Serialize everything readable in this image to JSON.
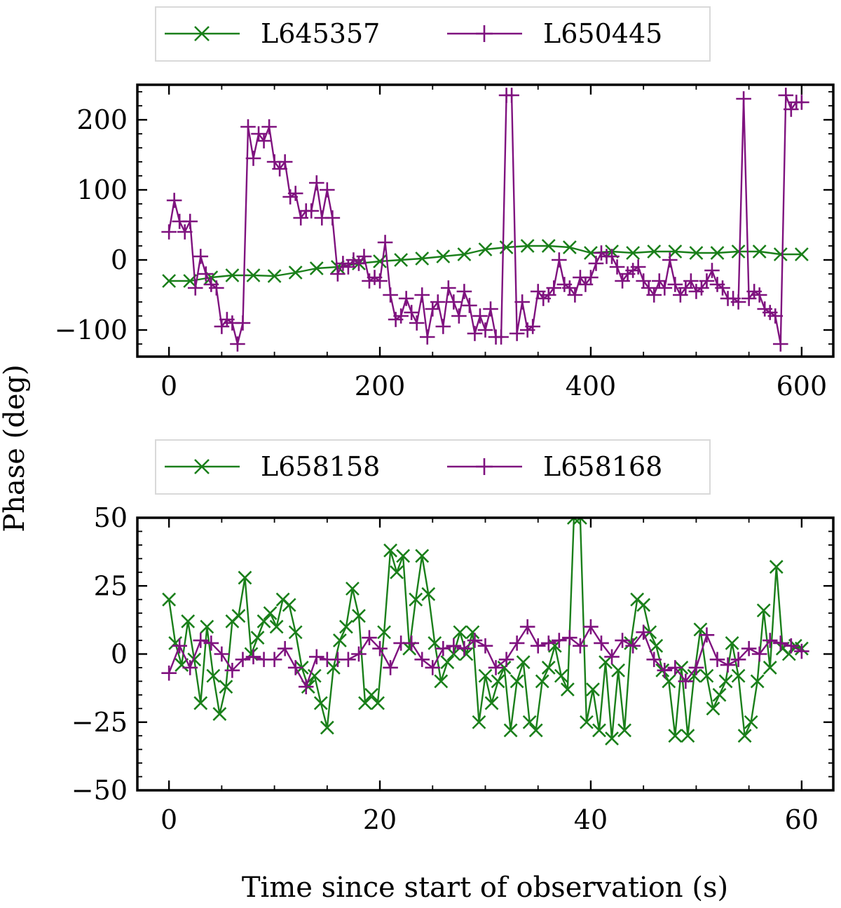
{
  "figure": {
    "ylabel": "Phase (deg)",
    "xlabel": "Time since start of observation (s)"
  },
  "colors": {
    "green": "#1a7f1a",
    "purple": "#7f127f"
  },
  "chart_data": [
    {
      "type": "line",
      "xlim": [
        -30,
        630
      ],
      "ylim": [
        -138,
        250
      ],
      "xticks": [
        0,
        200,
        400,
        600
      ],
      "yticks": [
        -100,
        0,
        100,
        200
      ],
      "xtick_labels": [
        "0",
        "200",
        "400",
        "600"
      ],
      "ytick_labels": [
        "−100",
        "0",
        "100",
        "200"
      ],
      "legend": [
        "L645357",
        "L650445"
      ],
      "series": [
        {
          "name": "L645357",
          "marker": "x",
          "color": "#1a7f1a",
          "x": [
            0,
            20,
            40,
            60,
            80,
            100,
            120,
            140,
            160,
            180,
            200,
            220,
            240,
            260,
            280,
            300,
            320,
            340,
            360,
            380,
            400,
            420,
            440,
            460,
            480,
            500,
            520,
            540,
            560,
            580,
            600
          ],
          "y": [
            -30,
            -30,
            -25,
            -22,
            -22,
            -23,
            -18,
            -12,
            -10,
            -5,
            -2,
            0,
            2,
            5,
            8,
            15,
            18,
            20,
            20,
            18,
            10,
            12,
            10,
            12,
            12,
            10,
            10,
            12,
            12,
            8,
            8
          ]
        },
        {
          "name": "L650445",
          "marker": "+",
          "color": "#7f127f",
          "x": [
            0,
            5,
            10,
            15,
            20,
            25,
            30,
            35,
            40,
            45,
            50,
            55,
            60,
            65,
            70,
            75,
            80,
            85,
            90,
            95,
            100,
            105,
            110,
            115,
            120,
            125,
            130,
            135,
            140,
            145,
            150,
            155,
            160,
            165,
            170,
            175,
            180,
            185,
            190,
            195,
            200,
            205,
            210,
            215,
            220,
            225,
            230,
            235,
            240,
            245,
            250,
            255,
            260,
            265,
            270,
            275,
            280,
            285,
            290,
            295,
            300,
            305,
            310,
            315,
            320,
            325,
            330,
            335,
            340,
            345,
            350,
            355,
            360,
            365,
            370,
            375,
            380,
            385,
            390,
            395,
            400,
            405,
            410,
            415,
            420,
            425,
            430,
            435,
            440,
            445,
            450,
            455,
            460,
            465,
            470,
            475,
            480,
            485,
            490,
            495,
            500,
            505,
            510,
            515,
            520,
            525,
            530,
            535,
            540,
            545,
            550,
            555,
            560,
            565,
            570,
            575,
            580,
            585,
            590,
            595,
            600
          ],
          "y": [
            40,
            85,
            55,
            40,
            55,
            -40,
            5,
            -20,
            -35,
            -40,
            -95,
            -85,
            -90,
            -120,
            -90,
            190,
            145,
            180,
            170,
            190,
            140,
            130,
            140,
            90,
            95,
            60,
            70,
            70,
            110,
            60,
            100,
            60,
            -20,
            -5,
            -10,
            0,
            -5,
            5,
            -30,
            -25,
            -30,
            25,
            -50,
            -85,
            -80,
            -55,
            -75,
            -90,
            -50,
            -110,
            -70,
            -60,
            -95,
            -40,
            -60,
            -80,
            -45,
            -65,
            -105,
            -80,
            -100,
            -70,
            -110,
            -110,
            235,
            235,
            -105,
            -60,
            -100,
            -95,
            -45,
            -55,
            -50,
            -40,
            0,
            -35,
            -40,
            -50,
            -25,
            -35,
            -25,
            -5,
            10,
            5,
            5,
            -10,
            -30,
            -20,
            -15,
            -10,
            -30,
            -40,
            -50,
            -30,
            -40,
            0,
            -35,
            -50,
            -40,
            -30,
            -45,
            -40,
            -30,
            -15,
            -35,
            -40,
            -55,
            -55,
            -60,
            230,
            -55,
            -45,
            -50,
            -70,
            -75,
            -80,
            -120,
            235,
            215,
            225,
            225
          ]
        }
      ]
    },
    {
      "type": "line",
      "xlim": [
        -3,
        63
      ],
      "ylim": [
        -50,
        50
      ],
      "xticks": [
        0,
        20,
        40,
        60
      ],
      "yticks": [
        -50,
        -25,
        0,
        25,
        50
      ],
      "xtick_labels": [
        "0",
        "20",
        "40",
        "60"
      ],
      "ytick_labels": [
        "−50",
        "−25",
        "0",
        "25",
        "50"
      ],
      "legend": [
        "L658158",
        "L658168"
      ],
      "series": [
        {
          "name": "L658158",
          "marker": "x",
          "color": "#1a7f1a",
          "x": [
            0,
            0.6,
            1.2,
            1.8,
            2.4,
            3.0,
            3.6,
            4.2,
            4.8,
            5.4,
            6.0,
            6.6,
            7.2,
            7.8,
            8.4,
            9.0,
            9.6,
            10.2,
            10.8,
            11.4,
            12.0,
            12.6,
            13.2,
            13.8,
            14.4,
            15.0,
            15.6,
            16.2,
            16.8,
            17.4,
            18.0,
            18.6,
            19.2,
            19.8,
            20.4,
            21.0,
            21.6,
            22.2,
            22.8,
            23.4,
            24.0,
            24.6,
            25.2,
            25.8,
            26.4,
            27.0,
            27.6,
            28.2,
            28.8,
            29.4,
            30.0,
            30.6,
            31.2,
            31.8,
            32.4,
            33.0,
            33.6,
            34.2,
            34.8,
            35.4,
            36.0,
            36.6,
            37.2,
            37.8,
            38.4,
            39.0,
            39.6,
            40.2,
            40.8,
            41.4,
            42.0,
            42.6,
            43.2,
            43.8,
            44.4,
            45.0,
            45.6,
            46.2,
            46.8,
            47.4,
            48.0,
            48.6,
            49.2,
            49.8,
            50.4,
            51.0,
            51.6,
            52.2,
            52.8,
            53.4,
            54.0,
            54.6,
            55.2,
            55.8,
            56.4,
            57.0,
            57.6,
            58.2,
            58.8,
            59.4,
            60.0
          ],
          "y": [
            20,
            4,
            -4,
            12,
            -2,
            -18,
            10,
            -8,
            -22,
            -12,
            12,
            14,
            28,
            0,
            6,
            12,
            15,
            10,
            20,
            18,
            8,
            -5,
            -12,
            -8,
            -18,
            -27,
            -5,
            5,
            10,
            24,
            14,
            -18,
            -15,
            -18,
            8,
            38,
            30,
            36,
            2,
            20,
            36,
            22,
            4,
            -10,
            -3,
            0,
            8,
            0,
            8,
            -25,
            -8,
            -18,
            -10,
            -5,
            -28,
            -10,
            -3,
            -25,
            -28,
            -10,
            -5,
            3,
            -8,
            -13,
            50,
            50,
            -25,
            -13,
            -28,
            -3,
            -31,
            -6,
            -28,
            4,
            20,
            18,
            8,
            3,
            -6,
            -10,
            -30,
            -5,
            -30,
            -8,
            9,
            -8,
            -20,
            -15,
            -10,
            4,
            -8,
            -30,
            -25,
            -10,
            16,
            -5,
            32,
            2,
            0,
            3,
            2
          ]
        },
        {
          "name": "L658168",
          "marker": "+",
          "color": "#7f127f",
          "x": [
            0,
            1,
            2,
            3,
            4,
            5,
            6,
            7,
            8,
            9,
            10,
            11,
            12,
            13,
            14,
            15,
            16,
            17,
            18,
            19,
            20,
            21,
            22,
            23,
            24,
            25,
            26,
            27,
            28,
            29,
            30,
            31,
            32,
            33,
            34,
            35,
            36,
            37,
            38,
            39,
            40,
            41,
            42,
            43,
            44,
            45,
            46,
            47,
            48,
            49,
            50,
            51,
            52,
            53,
            54,
            55,
            56,
            57,
            58,
            59,
            60
          ],
          "y": [
            -7,
            3,
            -5,
            5,
            4,
            0,
            -6,
            -2,
            -1,
            -2,
            -2,
            2,
            -5,
            -12,
            -1,
            -2,
            -2,
            -2,
            0,
            6,
            2,
            -5,
            4,
            4,
            -2,
            -5,
            2,
            3,
            2,
            5,
            3,
            -5,
            -2,
            4,
            10,
            3,
            4,
            5,
            6,
            3,
            10,
            4,
            -1,
            5,
            3,
            8,
            -2,
            -6,
            -5,
            -10,
            -5,
            7,
            -2,
            -4,
            -2,
            2,
            0,
            5,
            4,
            3,
            1
          ]
        }
      ]
    }
  ]
}
